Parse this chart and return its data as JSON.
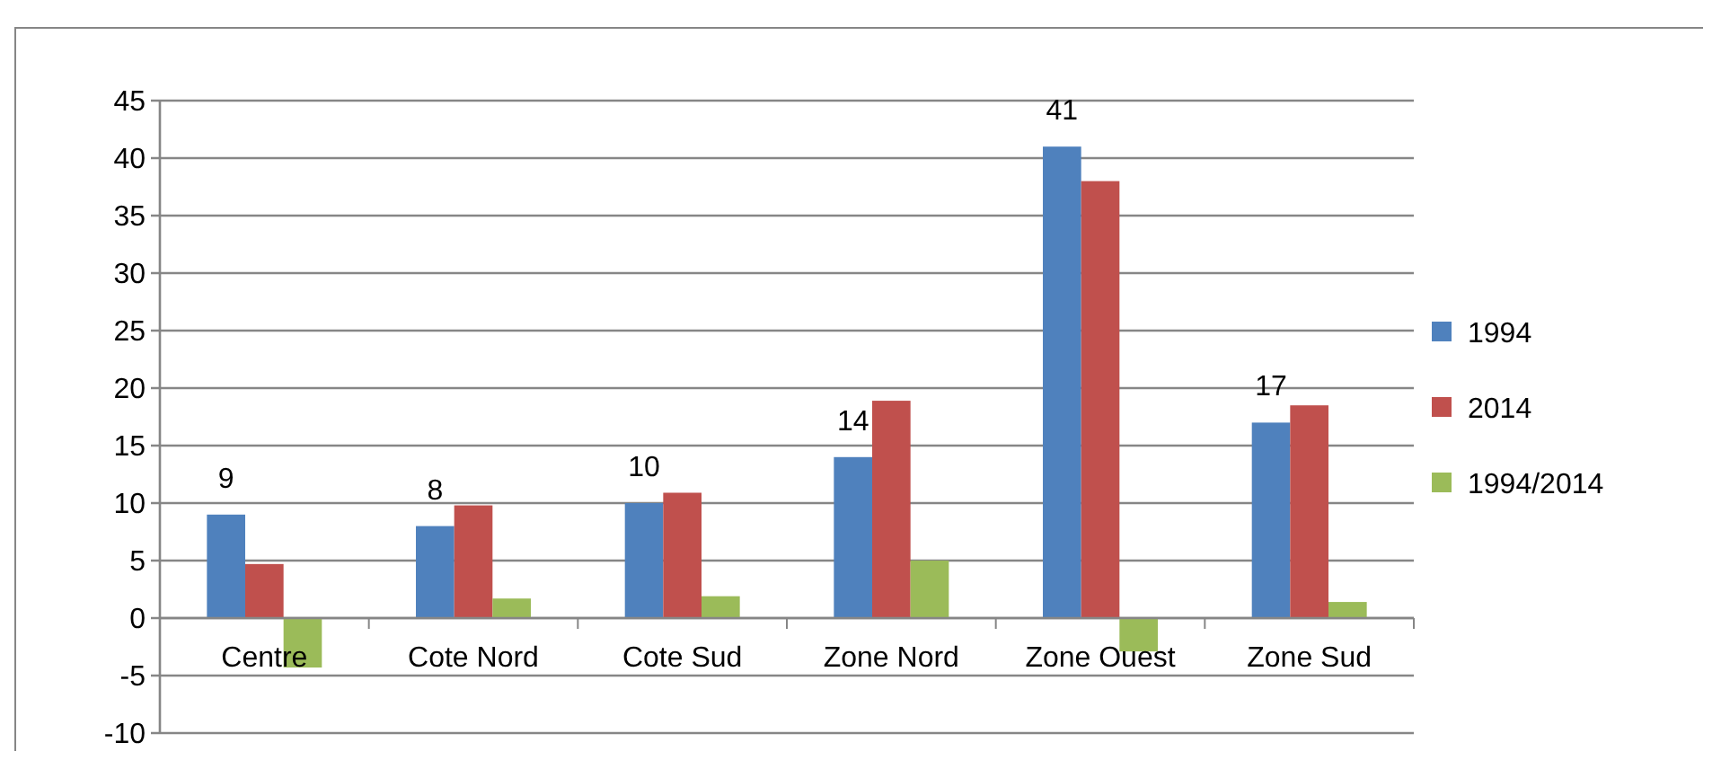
{
  "chart_data": {
    "type": "bar",
    "categories": [
      "Centre",
      "Cote Nord",
      "Cote Sud",
      "Zone Nord",
      "Zone Ouest",
      "Zone Sud"
    ],
    "series": [
      {
        "name": "1994",
        "color": "#4f81bd",
        "values": [
          9,
          8,
          10,
          14,
          41,
          17
        ],
        "value_labels": [
          "9",
          "8",
          "10",
          "14",
          "41",
          "17"
        ]
      },
      {
        "name": "2014",
        "color": "#c0504d",
        "values": [
          4.7,
          9.8,
          10.9,
          18.9,
          38,
          18.5
        ]
      },
      {
        "name": "1994/2014",
        "color": "#9bbb59",
        "values": [
          -4.3,
          1.7,
          1.9,
          5,
          -2.9,
          1.4
        ]
      }
    ],
    "ylim": [
      -10,
      45
    ],
    "yticks": [
      -10,
      -5,
      0,
      5,
      10,
      15,
      20,
      25,
      30,
      35,
      40,
      45
    ],
    "grid": "y",
    "legend": "right"
  }
}
